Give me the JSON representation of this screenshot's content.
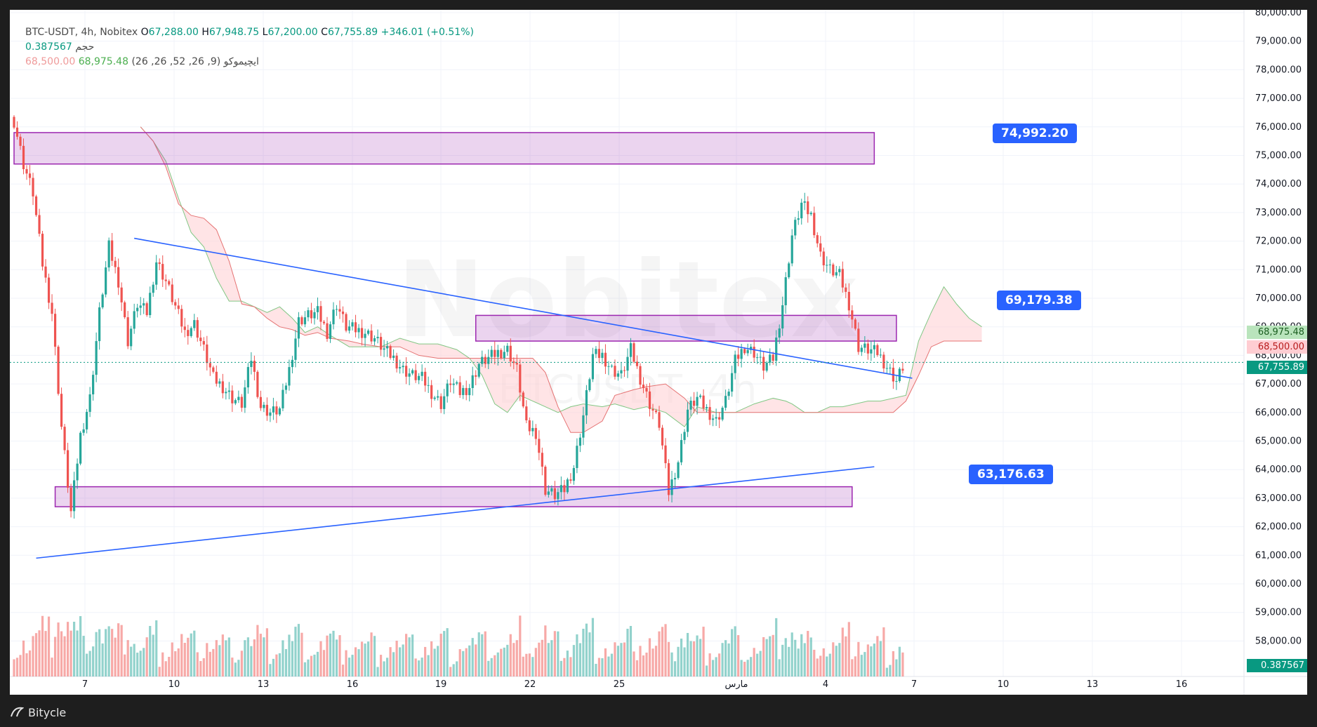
{
  "legend": {
    "symbol": "BTC-USDT, 4h, Nobitex",
    "o_label": "O",
    "o": "67,288.00",
    "h_label": "H",
    "h": "67,948.75",
    "l_label": "L",
    "l": "67,200.00",
    "c_label": "C",
    "c": "67,755.89",
    "change": "+346.01 (+0.51%)",
    "volume_label": "حجم",
    "volume": "0.387567",
    "ichimoku_label": "ایچیموکو (9, 26, 52, 26, 26)",
    "ichimoku_a": "68,975.48",
    "ichimoku_b": "68,500.00"
  },
  "watermark": {
    "line1": "Nobitex",
    "line2": "BTCUSDT, 4h"
  },
  "footer": {
    "brand": "Bitycle"
  },
  "colors": {
    "up": "#26a69a",
    "down": "#ef5350",
    "zone": "#9c27b0",
    "trend": "#2962ff",
    "cloud_up": "#a5d6a7",
    "cloud_down": "#ffcdd2"
  },
  "price_labels": {
    "span_a": "68,975.48",
    "span_b": "68,500.00",
    "last": "67,755.89",
    "volume": "0.387567"
  },
  "callouts": {
    "top": "74,992.20",
    "mid": "69,179.38",
    "low": "63,176.63"
  },
  "chart_data": {
    "type": "candlestick",
    "y_axis": {
      "ticks": [
        "80,000.00",
        "79,000.00",
        "78,000.00",
        "77,000.00",
        "76,000.00",
        "75,000.00",
        "74,000.00",
        "73,000.00",
        "72,000.00",
        "71,000.00",
        "70,000.00",
        "69,000.00",
        "68,000.00",
        "67,000.00",
        "66,000.00",
        "65,000.00",
        "64,000.00",
        "63,000.00",
        "62,000.00",
        "61,000.00",
        "60,000.00",
        "59,000.00",
        "58,000.00"
      ],
      "range": [
        57600,
        80000
      ]
    },
    "x_axis": {
      "ticks": [
        "7",
        "10",
        "13",
        "16",
        "19",
        "22",
        "25",
        "مارس",
        "4",
        "7",
        "10",
        "13",
        "16"
      ]
    },
    "anchors": [
      [
        0,
        76200
      ],
      [
        3,
        74700
      ],
      [
        6,
        73700
      ],
      [
        9,
        71200
      ],
      [
        12,
        69500
      ],
      [
        15,
        65500
      ],
      [
        18,
        62500
      ],
      [
        21,
        65200
      ],
      [
        24,
        66500
      ],
      [
        27,
        69500
      ],
      [
        30,
        71800
      ],
      [
        33,
        70600
      ],
      [
        36,
        68500
      ],
      [
        39,
        69800
      ],
      [
        42,
        69500
      ],
      [
        45,
        71300
      ],
      [
        48,
        70600
      ],
      [
        51,
        69700
      ],
      [
        54,
        68800
      ],
      [
        57,
        69100
      ],
      [
        60,
        68200
      ],
      [
        63,
        67200
      ],
      [
        66,
        66900
      ],
      [
        69,
        66500
      ],
      [
        72,
        66300
      ],
      [
        75,
        67900
      ],
      [
        78,
        66200
      ],
      [
        81,
        66000
      ],
      [
        84,
        66100
      ],
      [
        87,
        67500
      ],
      [
        90,
        69200
      ],
      [
        93,
        69400
      ],
      [
        96,
        69500
      ],
      [
        99,
        68800
      ],
      [
        102,
        69800
      ],
      [
        105,
        69000
      ],
      [
        108,
        68900
      ],
      [
        111,
        68800
      ],
      [
        114,
        68600
      ],
      [
        117,
        68200
      ],
      [
        120,
        67900
      ],
      [
        123,
        67500
      ],
      [
        126,
        67300
      ],
      [
        129,
        67200
      ],
      [
        132,
        66700
      ],
      [
        135,
        66300
      ],
      [
        138,
        67100
      ],
      [
        141,
        66700
      ],
      [
        144,
        66900
      ],
      [
        147,
        67700
      ],
      [
        150,
        67900
      ],
      [
        153,
        68100
      ],
      [
        156,
        68200
      ],
      [
        159,
        67500
      ],
      [
        162,
        65500
      ],
      [
        165,
        65300
      ],
      [
        168,
        63300
      ],
      [
        171,
        63100
      ],
      [
        174,
        63300
      ],
      [
        177,
        64100
      ],
      [
        180,
        65900
      ],
      [
        183,
        68000
      ],
      [
        186,
        68000
      ],
      [
        189,
        67500
      ],
      [
        192,
        67300
      ],
      [
        195,
        68200
      ],
      [
        198,
        67200
      ],
      [
        201,
        66300
      ],
      [
        204,
        65600
      ],
      [
        207,
        63200
      ],
      [
        210,
        64300
      ],
      [
        213,
        66100
      ],
      [
        216,
        66500
      ],
      [
        219,
        66100
      ],
      [
        222,
        65700
      ],
      [
        225,
        66400
      ],
      [
        228,
        67800
      ],
      [
        231,
        68300
      ],
      [
        234,
        68100
      ],
      [
        237,
        67600
      ],
      [
        240,
        67900
      ],
      [
        243,
        69800
      ],
      [
        246,
        72200
      ],
      [
        249,
        73300
      ],
      [
        252,
        72900
      ],
      [
        255,
        71500
      ],
      [
        258,
        71000
      ],
      [
        261,
        70800
      ],
      [
        264,
        69800
      ],
      [
        267,
        68300
      ],
      [
        270,
        68200
      ],
      [
        273,
        68100
      ],
      [
        276,
        67600
      ],
      [
        279,
        67100
      ],
      [
        281,
        67600
      ]
    ],
    "kumo": [
      [
        40,
        76000
      ],
      [
        44,
        75500
      ],
      [
        48,
        74800
      ],
      [
        52,
        73500
      ],
      [
        56,
        72300
      ],
      [
        60,
        71800
      ],
      [
        64,
        70700
      ],
      [
        68,
        69900
      ],
      [
        72,
        69900
      ],
      [
        76,
        69700
      ],
      [
        80,
        69500
      ],
      [
        84,
        69700
      ],
      [
        88,
        69300
      ],
      [
        92,
        68800
      ],
      [
        96,
        69000
      ],
      [
        100,
        68700
      ],
      [
        106,
        68300
      ],
      [
        110,
        68300
      ],
      [
        116,
        68300
      ],
      [
        122,
        68600
      ],
      [
        128,
        68400
      ],
      [
        134,
        68400
      ],
      [
        140,
        68200
      ],
      [
        144,
        67900
      ],
      [
        148,
        67300
      ],
      [
        152,
        66300
      ],
      [
        156,
        66000
      ],
      [
        160,
        66600
      ],
      [
        164,
        66400
      ],
      [
        168,
        66200
      ],
      [
        172,
        66000
      ],
      [
        176,
        66200
      ],
      [
        180,
        66300
      ],
      [
        186,
        66200
      ],
      [
        190,
        66300
      ],
      [
        196,
        66100
      ],
      [
        200,
        66200
      ],
      [
        206,
        66000
      ],
      [
        212,
        65500
      ],
      [
        216,
        66200
      ],
      [
        222,
        66000
      ],
      [
        228,
        66000
      ],
      [
        234,
        66300
      ],
      [
        240,
        66500
      ],
      [
        244,
        66400
      ],
      [
        246,
        66300
      ],
      [
        250,
        66000
      ],
      [
        254,
        66000
      ],
      [
        258,
        66200
      ],
      [
        262,
        66200
      ],
      [
        266,
        66300
      ],
      [
        270,
        66400
      ],
      [
        274,
        66400
      ],
      [
        278,
        66500
      ],
      [
        282,
        66600
      ],
      [
        286,
        68500
      ],
      [
        290,
        69500
      ],
      [
        294,
        70400
      ],
      [
        298,
        69800
      ],
      [
        302,
        69300
      ],
      [
        306,
        69000
      ]
    ],
    "kumo_b": [
      [
        40,
        76000
      ],
      [
        44,
        75500
      ],
      [
        48,
        74600
      ],
      [
        52,
        73300
      ],
      [
        56,
        72900
      ],
      [
        60,
        72800
      ],
      [
        64,
        72400
      ],
      [
        68,
        71300
      ],
      [
        72,
        69800
      ],
      [
        76,
        69700
      ],
      [
        80,
        69300
      ],
      [
        84,
        69000
      ],
      [
        88,
        68900
      ],
      [
        92,
        68700
      ],
      [
        96,
        68800
      ],
      [
        100,
        68600
      ],
      [
        106,
        68500
      ],
      [
        110,
        68400
      ],
      [
        116,
        68300
      ],
      [
        122,
        68300
      ],
      [
        128,
        68000
      ],
      [
        134,
        67900
      ],
      [
        140,
        67900
      ],
      [
        144,
        67900
      ],
      [
        148,
        67900
      ],
      [
        152,
        67900
      ],
      [
        156,
        67900
      ],
      [
        160,
        67900
      ],
      [
        164,
        67900
      ],
      [
        168,
        67400
      ],
      [
        172,
        66200
      ],
      [
        176,
        65300
      ],
      [
        180,
        65300
      ],
      [
        186,
        65700
      ],
      [
        190,
        66600
      ],
      [
        196,
        66800
      ],
      [
        200,
        66900
      ],
      [
        206,
        67000
      ],
      [
        212,
        66500
      ],
      [
        216,
        66000
      ],
      [
        222,
        66000
      ],
      [
        228,
        66000
      ],
      [
        234,
        66000
      ],
      [
        240,
        66000
      ],
      [
        244,
        66000
      ],
      [
        246,
        66000
      ],
      [
        250,
        66000
      ],
      [
        254,
        66000
      ],
      [
        258,
        66000
      ],
      [
        262,
        66000
      ],
      [
        266,
        66000
      ],
      [
        270,
        66000
      ],
      [
        274,
        66000
      ],
      [
        278,
        66000
      ],
      [
        282,
        66400
      ],
      [
        286,
        67300
      ],
      [
        290,
        68300
      ],
      [
        294,
        68500
      ],
      [
        298,
        68500
      ],
      [
        302,
        68500
      ],
      [
        306,
        68500
      ]
    ],
    "zones": [
      {
        "from_bar": 0,
        "to_bar": 272,
        "low": 74700,
        "high": 75800
      },
      {
        "from_bar": 146,
        "to_bar": 279,
        "low": 68500,
        "high": 69400
      },
      {
        "from_bar": 13,
        "to_bar": 265,
        "low": 62700,
        "high": 63400
      }
    ],
    "trendlines": [
      {
        "from": [
          38,
          72100
        ],
        "to": [
          284,
          67200
        ]
      },
      {
        "from": [
          7,
          60900
        ],
        "to": [
          272,
          64100
        ]
      }
    ]
  }
}
